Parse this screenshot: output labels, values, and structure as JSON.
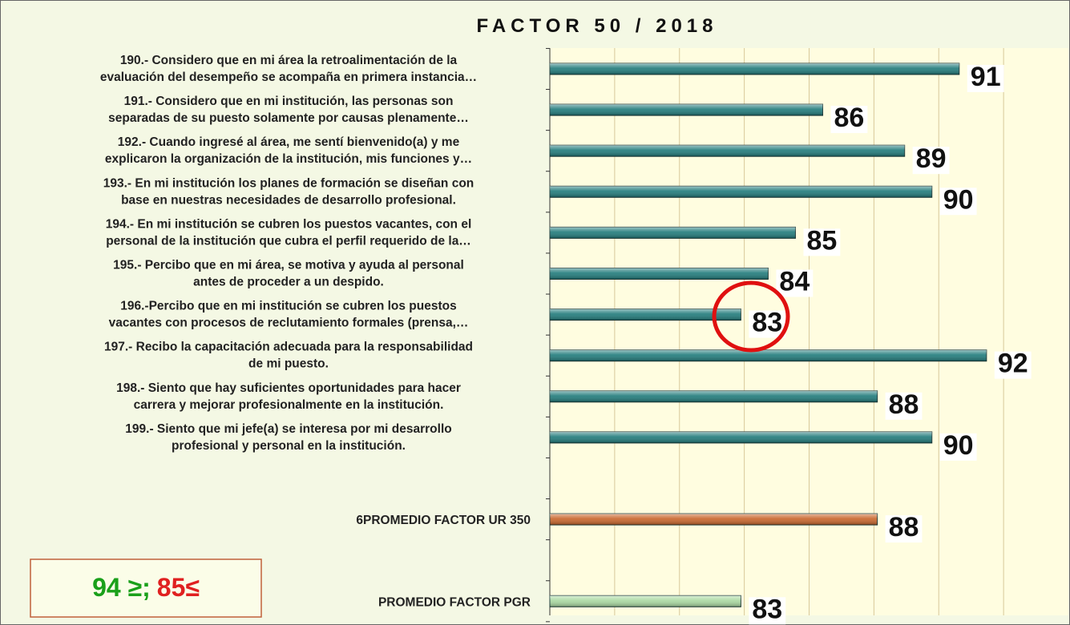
{
  "chart_data": {
    "type": "barh",
    "title": "FACTOR 50 / 2018",
    "categories": [
      "190.- Considero que en mi área la retroalimentación de la\nevaluación del desempeño se acompaña en primera instancia…",
      "191.- Considero que en mi institución, las personas son\nseparadas de su puesto solamente por causas plenamente…",
      "192.- Cuando ingresé al área, me sentí bienvenido(a) y me\nexplicaron la organización de la institución, mis funciones y…",
      "193.- En mi institución los planes de formación se diseñan con\nbase en nuestras necesidades de desarrollo profesional.",
      "194.- En mi institución se cubren los puestos vacantes, con el\npersonal de la institución que cubra el perfil requerido de la…",
      "195.- Percibo que en mi área, se motiva y ayuda al personal\nantes de proceder a un despido.",
      "196.-Percibo que en mi institución se cubren los puestos\nvacantes con procesos de reclutamiento formales (prensa,…",
      "197.- Recibo la capacitación adecuada para la responsabilidad\nde mi puesto.",
      "198.- Siento que hay suficientes oportunidades para hacer\ncarrera y mejorar profesionalmente en la institución.",
      "199.- Siento que mi jefe(a) se interesa por mi desarrollo\nprofesional y personal en la institución.",
      null,
      "6PROMEDIO FACTOR UR 350",
      null,
      "PROMEDIO FACTOR PGR"
    ],
    "values": [
      91,
      86,
      89,
      90,
      85,
      84,
      83,
      92,
      88,
      90,
      null,
      88,
      null,
      83
    ],
    "colors": [
      "#1f7a7a",
      "#1f7a7a",
      "#1f7a7a",
      "#1f7a7a",
      "#1f7a7a",
      "#1f7a7a",
      "#1f7a7a",
      "#1f7a7a",
      "#1f7a7a",
      "#1f7a7a",
      null,
      "#c8642a",
      null,
      "#a8d8a0"
    ],
    "xlim": [
      76,
      95
    ],
    "grid": true,
    "legend_note": {
      "good": "94 ≥;",
      "bad": "85≤"
    }
  }
}
